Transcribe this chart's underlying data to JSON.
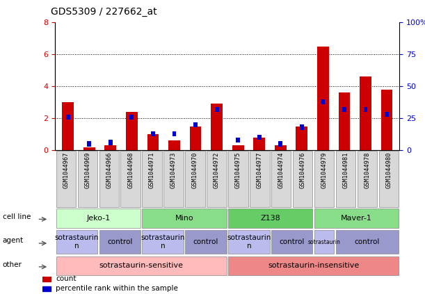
{
  "title": "GDS5309 / 227662_at",
  "samples": [
    "GSM1044967",
    "GSM1044969",
    "GSM1044966",
    "GSM1044968",
    "GSM1044971",
    "GSM1044973",
    "GSM1044970",
    "GSM1044972",
    "GSM1044975",
    "GSM1044977",
    "GSM1044974",
    "GSM1044976",
    "GSM1044979",
    "GSM1044981",
    "GSM1044978",
    "GSM1044980"
  ],
  "red_values": [
    3.0,
    0.2,
    0.3,
    2.4,
    1.0,
    0.6,
    1.5,
    2.9,
    0.3,
    0.8,
    0.3,
    1.5,
    6.5,
    3.6,
    4.6,
    3.8
  ],
  "blue_values": [
    26,
    5,
    6,
    26,
    13,
    13,
    20,
    32,
    8,
    10,
    5,
    18,
    38,
    32,
    32,
    28
  ],
  "ylim_left": [
    0,
    8
  ],
  "ylim_right": [
    0,
    100
  ],
  "yticks_left": [
    0,
    2,
    4,
    6,
    8
  ],
  "yticks_right": [
    0,
    25,
    50,
    75,
    100
  ],
  "ytick_labels_right": [
    "0",
    "25",
    "50",
    "75",
    "100%"
  ],
  "bar_color_red": "#cc0000",
  "bar_color_blue": "#0000cc",
  "cell_lines": [
    {
      "label": "Jeko-1",
      "start": 0,
      "end": 4,
      "color": "#ccffcc"
    },
    {
      "label": "Mino",
      "start": 4,
      "end": 8,
      "color": "#88dd88"
    },
    {
      "label": "Z138",
      "start": 8,
      "end": 12,
      "color": "#66cc66"
    },
    {
      "label": "Maver-1",
      "start": 12,
      "end": 16,
      "color": "#88dd88"
    }
  ],
  "agents": [
    {
      "label": "sotrastaurin\nn",
      "start": 0,
      "end": 2,
      "color": "#bbbbee"
    },
    {
      "label": "control",
      "start": 2,
      "end": 4,
      "color": "#9999cc"
    },
    {
      "label": "sotrastaurin\nn",
      "start": 4,
      "end": 6,
      "color": "#bbbbee"
    },
    {
      "label": "control",
      "start": 6,
      "end": 8,
      "color": "#9999cc"
    },
    {
      "label": "sotrastaurin\nn",
      "start": 8,
      "end": 10,
      "color": "#bbbbee"
    },
    {
      "label": "control",
      "start": 10,
      "end": 12,
      "color": "#9999cc"
    },
    {
      "label": "sotrastaurin",
      "start": 12,
      "end": 13,
      "color": "#bbbbee"
    },
    {
      "label": "control",
      "start": 13,
      "end": 16,
      "color": "#9999cc"
    }
  ],
  "others": [
    {
      "label": "sotrastaurin-sensitive",
      "start": 0,
      "end": 8,
      "color": "#ffbbbb"
    },
    {
      "label": "sotrastaurin-insensitive",
      "start": 8,
      "end": 16,
      "color": "#ee8888"
    }
  ],
  "legend_items": [
    {
      "label": "count",
      "color": "#cc0000"
    },
    {
      "label": "percentile rank within the sample",
      "color": "#0000cc"
    }
  ],
  "background_color": "#ffffff",
  "bar_width": 0.55
}
